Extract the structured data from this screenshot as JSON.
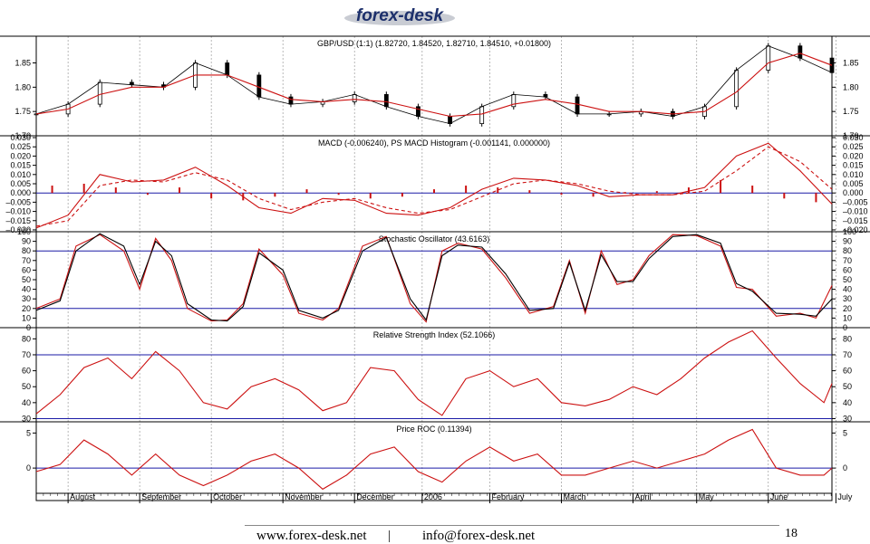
{
  "brand": {
    "logo_text": "forex-desk",
    "colors": {
      "logo_dark": "#1c2f6b",
      "logo_silver": "#c9ccd3"
    }
  },
  "footer": {
    "website": "www.forex-desk.net",
    "separator": "|",
    "email": "info@forex-desk.net",
    "page_number": "18"
  },
  "colors": {
    "price_bar": "#000000",
    "indicator_main": "#cc1111",
    "indicator_signal": "#000000",
    "level_line": "#1a1aa6",
    "grid": "#9a9a9a"
  },
  "chart_data": [
    {
      "type": "ohlc",
      "title": "GBP/USD (1:1) (1.82720, 1.84520, 1.82710, 1.84510, +0.01800)",
      "y_ticks": [
        "1.85",
        "1.80",
        "1.75",
        "1.70"
      ],
      "y_tick_values": [
        1.85,
        1.8,
        1.75,
        1.7
      ],
      "ylim": [
        1.7,
        1.905
      ],
      "series": [
        {
          "name": "Close",
          "x": [
            0,
            4,
            8,
            12,
            16,
            20,
            24,
            28,
            32,
            36,
            40,
            44,
            48,
            52,
            56,
            60,
            64,
            68,
            72,
            76,
            80,
            84,
            88,
            92,
            96,
            100
          ],
          "values": [
            1.745,
            1.765,
            1.81,
            1.805,
            1.8,
            1.85,
            1.825,
            1.78,
            1.765,
            1.77,
            1.785,
            1.76,
            1.74,
            1.725,
            1.76,
            1.785,
            1.78,
            1.745,
            1.745,
            1.75,
            1.74,
            1.76,
            1.835,
            1.885,
            1.86,
            1.83
          ]
        },
        {
          "name": "Moving Average",
          "x": [
            0,
            4,
            8,
            12,
            16,
            20,
            24,
            28,
            32,
            36,
            40,
            44,
            48,
            52,
            56,
            60,
            64,
            68,
            72,
            76,
            80,
            84,
            88,
            92,
            96,
            100
          ],
          "values": [
            1.745,
            1.755,
            1.785,
            1.8,
            1.8,
            1.825,
            1.825,
            1.8,
            1.775,
            1.77,
            1.775,
            1.77,
            1.755,
            1.74,
            1.745,
            1.765,
            1.775,
            1.765,
            1.75,
            1.75,
            1.745,
            1.75,
            1.79,
            1.85,
            1.87,
            1.845
          ]
        }
      ]
    },
    {
      "type": "line",
      "title": "MACD (-0.006240), PS MACD Histogram (-0.001141, 0.000000)",
      "y_ticks": [
        "0.030",
        "0.025",
        "0.020",
        "0.015",
        "0.010",
        "0.005",
        "0.000",
        "–0.005",
        "–0.010",
        "–0.015",
        "–0.020"
      ],
      "y_tick_values": [
        0.03,
        0.025,
        0.02,
        0.015,
        0.01,
        0.005,
        0.0,
        -0.005,
        -0.01,
        -0.015,
        -0.02
      ],
      "ylim": [
        -0.021,
        0.031
      ],
      "zero_level": 0.0,
      "series": [
        {
          "name": "MACD",
          "x": [
            0,
            4,
            8,
            12,
            16,
            20,
            24,
            28,
            32,
            36,
            40,
            44,
            48,
            52,
            56,
            60,
            64,
            68,
            72,
            76,
            80,
            84,
            88,
            92,
            96,
            100
          ],
          "values": [
            -0.019,
            -0.012,
            0.01,
            0.006,
            0.007,
            0.014,
            0.004,
            -0.008,
            -0.011,
            -0.003,
            -0.004,
            -0.011,
            -0.012,
            -0.008,
            0.002,
            0.008,
            0.007,
            0.004,
            -0.002,
            -0.001,
            -0.001,
            0.003,
            0.02,
            0.027,
            0.012,
            -0.006
          ]
        },
        {
          "name": "Signal",
          "x": [
            0,
            4,
            8,
            12,
            16,
            20,
            24,
            28,
            32,
            36,
            40,
            44,
            48,
            52,
            56,
            60,
            64,
            68,
            72,
            76,
            80,
            84,
            88,
            92,
            96,
            100
          ],
          "values": [
            -0.018,
            -0.015,
            0.004,
            0.007,
            0.006,
            0.011,
            0.007,
            -0.003,
            -0.009,
            -0.005,
            -0.003,
            -0.008,
            -0.011,
            -0.009,
            -0.002,
            0.005,
            0.007,
            0.005,
            0.001,
            -0.001,
            -0.001,
            0.001,
            0.012,
            0.025,
            0.017,
            0.002
          ]
        },
        {
          "name": "Histogram",
          "x": [
            2,
            6,
            10,
            14,
            18,
            22,
            26,
            30,
            34,
            38,
            42,
            46,
            50,
            54,
            58,
            62,
            66,
            70,
            74,
            78,
            82,
            86,
            90,
            94,
            98
          ],
          "values": [
            0.004,
            0.005,
            0.003,
            -0.001,
            0.003,
            -0.003,
            -0.004,
            -0.002,
            0.002,
            -0.001,
            -0.003,
            -0.002,
            0.002,
            0.004,
            0.003,
            0.0015,
            -0.001,
            -0.002,
            0.0005,
            0.001,
            0.003,
            0.007,
            0.004,
            -0.003,
            -0.005
          ]
        }
      ]
    },
    {
      "type": "line",
      "title": "Stochastic Oscillator (43.6163)",
      "y_ticks": [
        "100",
        "90",
        "80",
        "70",
        "60",
        "50",
        "40",
        "30",
        "20",
        "10",
        "0"
      ],
      "y_tick_values": [
        100,
        90,
        80,
        70,
        60,
        50,
        40,
        30,
        20,
        10,
        0
      ],
      "ylim": [
        0,
        100
      ],
      "levels": [
        80,
        20
      ],
      "series": [
        {
          "name": "%K",
          "x": [
            0,
            3,
            5,
            8,
            11,
            13,
            15,
            17,
            19,
            22,
            24,
            26,
            28,
            31,
            33,
            36,
            38,
            41,
            44,
            47,
            49,
            51,
            53,
            56,
            59,
            62,
            65,
            67,
            69,
            71,
            73,
            75,
            77,
            80,
            83,
            86,
            88,
            90,
            93,
            96,
            98,
            100
          ],
          "values": [
            20,
            30,
            85,
            97,
            80,
            40,
            93,
            70,
            20,
            7,
            8,
            25,
            82,
            55,
            15,
            8,
            20,
            85,
            95,
            25,
            6,
            80,
            88,
            82,
            52,
            15,
            22,
            70,
            15,
            80,
            45,
            50,
            75,
            97,
            96,
            85,
            42,
            40,
            12,
            15,
            10,
            44
          ]
        },
        {
          "name": "%D",
          "x": [
            0,
            3,
            5,
            8,
            11,
            13,
            15,
            17,
            19,
            22,
            24,
            26,
            28,
            31,
            33,
            36,
            38,
            41,
            44,
            47,
            49,
            51,
            53,
            56,
            59,
            62,
            65,
            67,
            69,
            71,
            73,
            75,
            77,
            80,
            83,
            86,
            88,
            90,
            93,
            96,
            98,
            100
          ],
          "values": [
            18,
            28,
            80,
            98,
            85,
            45,
            90,
            75,
            25,
            8,
            7,
            22,
            78,
            60,
            18,
            10,
            18,
            80,
            94,
            30,
            8,
            75,
            86,
            84,
            56,
            18,
            20,
            68,
            18,
            76,
            48,
            48,
            72,
            95,
            97,
            88,
            46,
            38,
            15,
            14,
            12,
            30
          ]
        }
      ]
    },
    {
      "type": "line",
      "title": "Relative Strength Index (52.1066)",
      "y_ticks": [
        "80",
        "70",
        "60",
        "50",
        "40",
        "30"
      ],
      "y_tick_values": [
        80,
        70,
        60,
        50,
        40,
        30
      ],
      "ylim": [
        28,
        87
      ],
      "levels": [
        70,
        30
      ],
      "series": [
        {
          "name": "RSI",
          "x": [
            0,
            3,
            6,
            9,
            12,
            15,
            18,
            21,
            24,
            27,
            30,
            33,
            36,
            39,
            42,
            45,
            48,
            51,
            54,
            57,
            60,
            63,
            66,
            69,
            72,
            75,
            78,
            81,
            84,
            87,
            90,
            93,
            96,
            99,
            100
          ],
          "values": [
            33,
            45,
            62,
            68,
            55,
            72,
            60,
            40,
            36,
            50,
            55,
            48,
            35,
            40,
            62,
            60,
            42,
            32,
            55,
            60,
            50,
            55,
            40,
            38,
            42,
            50,
            45,
            55,
            68,
            78,
            85,
            68,
            52,
            40,
            52
          ]
        }
      ]
    },
    {
      "type": "line",
      "title": "Price ROC (0.11394)",
      "y_ticks": [
        "5",
        "0"
      ],
      "y_tick_values": [
        5,
        0
      ],
      "ylim": [
        -3.6,
        6.6
      ],
      "zero_level": 0,
      "series": [
        {
          "name": "ROC",
          "x": [
            0,
            3,
            6,
            9,
            12,
            15,
            18,
            21,
            24,
            27,
            30,
            33,
            36,
            39,
            42,
            45,
            48,
            51,
            54,
            57,
            60,
            63,
            66,
            69,
            72,
            75,
            78,
            81,
            84,
            87,
            90,
            93,
            96,
            99,
            100
          ],
          "values": [
            -0.5,
            0.5,
            4,
            2,
            -1,
            2,
            -1,
            -2.5,
            -1,
            1,
            2,
            0,
            -3,
            -1,
            2,
            3,
            -0.5,
            -2,
            1,
            3,
            1,
            2,
            -1,
            -1,
            0,
            1,
            0,
            1,
            2,
            4,
            5.5,
            0,
            -1,
            -1,
            0
          ]
        }
      ]
    }
  ],
  "x_axis": {
    "labels": [
      "August",
      "September",
      "October",
      "November",
      "December",
      "2006",
      "February",
      "March",
      "April",
      "May",
      "June",
      "July"
    ],
    "positions": [
      4,
      13,
      22,
      31,
      40,
      48.5,
      57,
      66,
      75,
      83,
      92,
      100.5
    ],
    "xlim": [
      0,
      100
    ]
  }
}
